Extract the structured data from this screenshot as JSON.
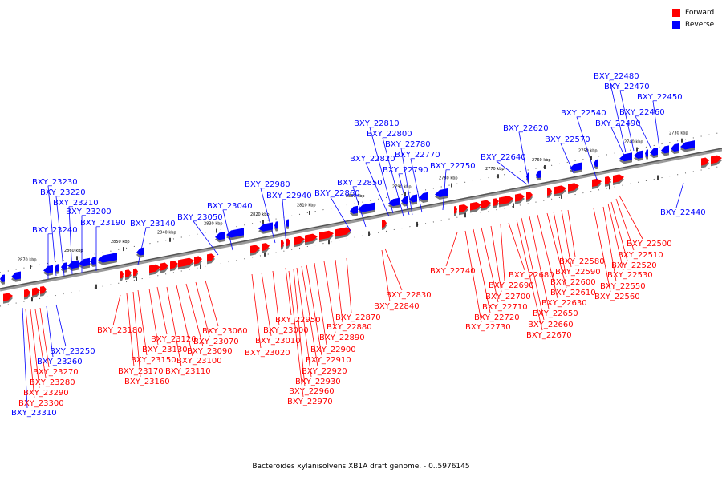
{
  "legend": {
    "forward_label": "Forward",
    "reverse_label": "Reverse",
    "forward_color": "#ff0000",
    "reverse_color": "#0000ff"
  },
  "caption": "Bacteroides xylanisolvens XB1A draft genome. - 0..5976145",
  "scale": {
    "kbp_labels": [
      "2870 kbp",
      "2860 kbp",
      "2850 kbp",
      "2840 kbp",
      "2830 kbp",
      "2820 kbp",
      "2810 kbp",
      "2800 kbp",
      "2790 kbp",
      "2780 kbp",
      "2770 kbp",
      "2760 kbp",
      "2750 kbp",
      "2740 kbp",
      "2730 kbp"
    ]
  },
  "genes": {
    "reverse": [
      "BXY_22480",
      "BXY_22470",
      "BXY_22450",
      "BXY_22460",
      "BXY_22540",
      "BXY_22490",
      "BXY_22620",
      "BXY_22570",
      "BXY_22640",
      "BXY_22810",
      "BXY_22800",
      "BXY_22780",
      "BXY_22770",
      "BXY_22820",
      "BXY_22790",
      "BXY_22750",
      "BXY_22850",
      "BXY_22860",
      "BXY_22980",
      "BXY_22940",
      "BXY_23040",
      "BXY_23050",
      "BXY_23140",
      "BXY_23230",
      "BXY_23220",
      "BXY_23210",
      "BXY_23200",
      "BXY_23190",
      "BXY_23240",
      "BXY_22440",
      "BXY_23250",
      "BXY_23260",
      "BXY_23310"
    ],
    "forward": [
      "BXY_22500",
      "BXY_22510",
      "BXY_22520",
      "BXY_22530",
      "BXY_22550",
      "BXY_22560",
      "BXY_22580",
      "BXY_22590",
      "BXY_22600",
      "BXY_22610",
      "BXY_22630",
      "BXY_22650",
      "BXY_22660",
      "BXY_22670",
      "BXY_22680",
      "BXY_22690",
      "BXY_22700",
      "BXY_22710",
      "BXY_22720",
      "BXY_22730",
      "BXY_22740",
      "BXY_22830",
      "BXY_22840",
      "BXY_22870",
      "BXY_22880",
      "BXY_22890",
      "BXY_22900",
      "BXY_22910",
      "BXY_22920",
      "BXY_22930",
      "BXY_22950",
      "BXY_22960",
      "BXY_22970",
      "BXY_23000",
      "BXY_23010",
      "BXY_23020",
      "BXY_23060",
      "BXY_23070",
      "BXY_23090",
      "BXY_23100",
      "BXY_23110",
      "BXY_23120",
      "BXY_23130",
      "BXY_23150",
      "BXY_23160",
      "BXY_23170",
      "BXY_23180",
      "BXY_23270",
      "BXY_23280",
      "BXY_23290",
      "BXY_23300"
    ]
  }
}
